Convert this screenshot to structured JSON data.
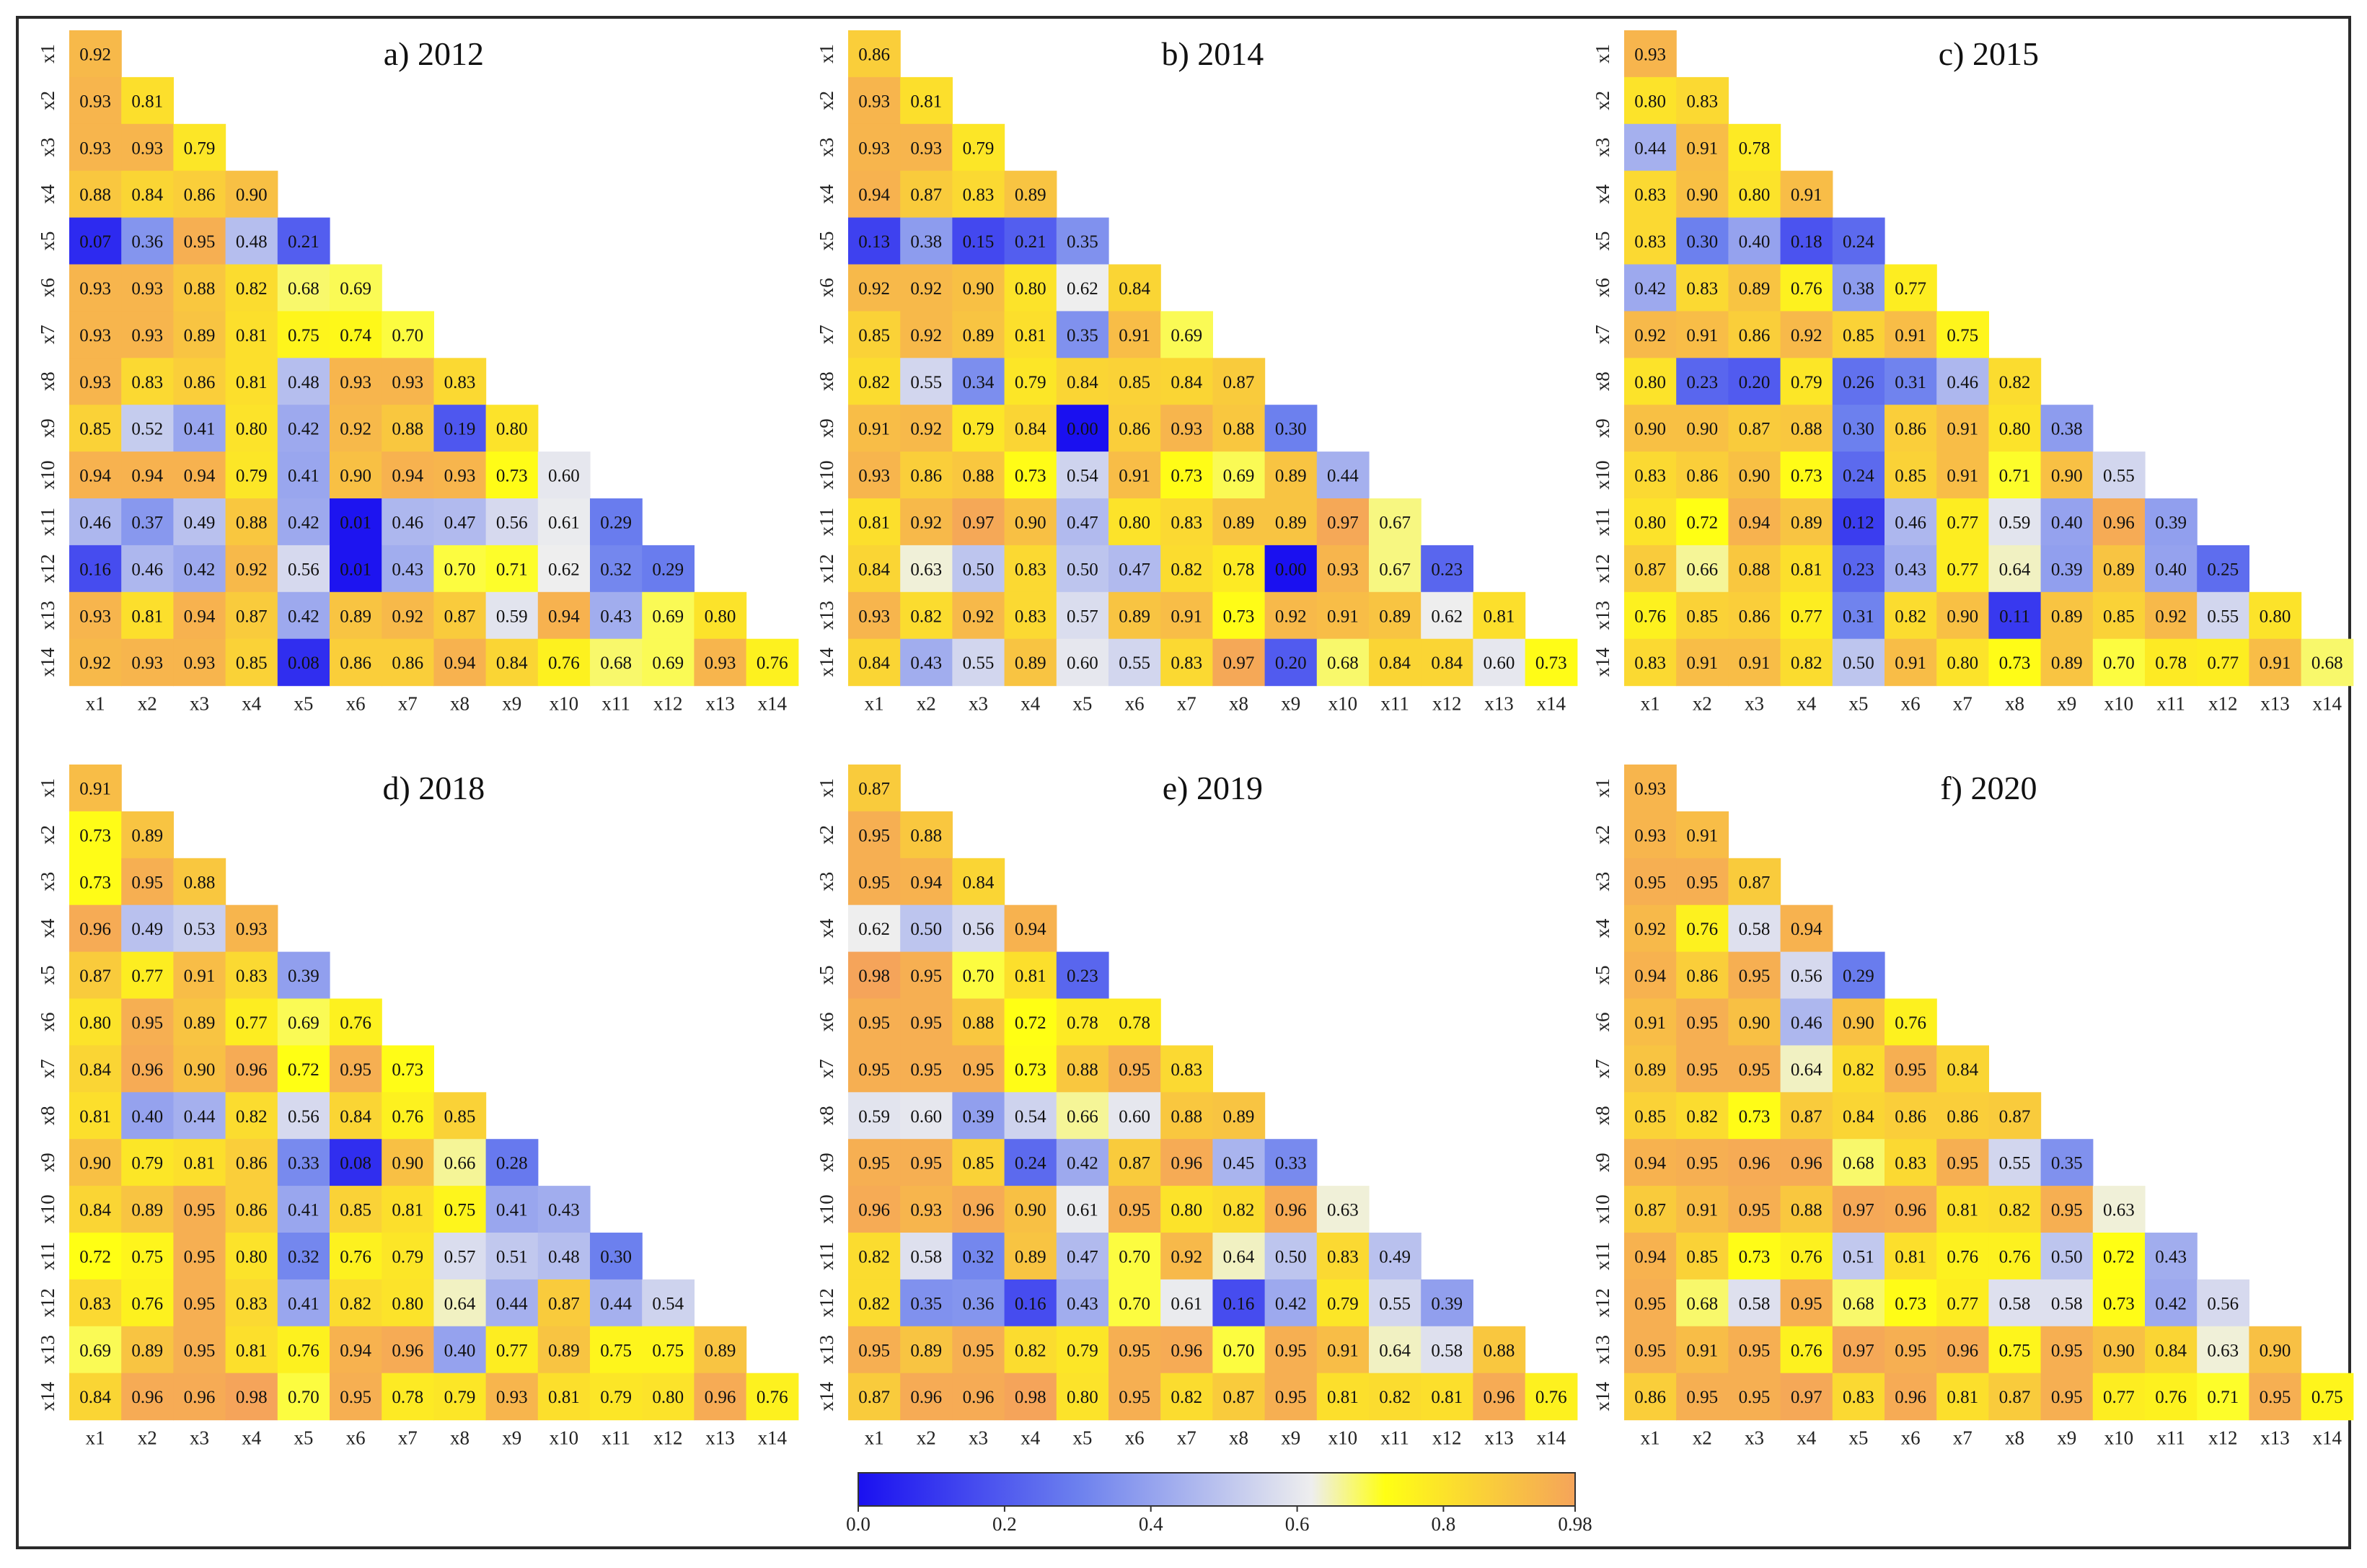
{
  "chart_data": [
    {
      "type": "heatmap",
      "title": "a) 2012",
      "labels": [
        "x1",
        "x2",
        "x3",
        "x4",
        "x5",
        "x6",
        "x7",
        "x8",
        "x9",
        "x10",
        "x11",
        "x12",
        "x13",
        "x14"
      ],
      "matrix": [
        [
          0.92
        ],
        [
          0.93,
          0.81
        ],
        [
          0.93,
          0.93,
          0.79
        ],
        [
          0.88,
          0.84,
          0.86,
          0.9
        ],
        [
          0.07,
          0.36,
          0.95,
          0.48,
          0.21
        ],
        [
          0.93,
          0.93,
          0.88,
          0.82,
          0.68,
          0.69
        ],
        [
          0.93,
          0.93,
          0.89,
          0.81,
          0.75,
          0.74,
          0.7
        ],
        [
          0.93,
          0.83,
          0.86,
          0.81,
          0.48,
          0.93,
          0.93,
          0.83
        ],
        [
          0.85,
          0.52,
          0.41,
          0.8,
          0.42,
          0.92,
          0.88,
          0.19,
          0.8
        ],
        [
          0.94,
          0.94,
          0.94,
          0.79,
          0.41,
          0.9,
          0.94,
          0.93,
          0.73,
          0.6
        ],
        [
          0.46,
          0.37,
          0.49,
          0.88,
          0.42,
          0.01,
          0.46,
          0.47,
          0.56,
          0.61,
          0.29
        ],
        [
          0.16,
          0.46,
          0.42,
          0.92,
          0.56,
          0.01,
          0.43,
          0.7,
          0.71,
          0.62,
          0.32,
          0.29
        ],
        [
          0.93,
          0.81,
          0.94,
          0.87,
          0.42,
          0.89,
          0.92,
          0.87,
          0.59,
          0.94,
          0.43,
          0.69,
          0.8
        ],
        [
          0.92,
          0.93,
          0.93,
          0.85,
          0.08,
          0.86,
          0.86,
          0.94,
          0.84,
          0.76,
          0.68,
          0.69,
          0.93,
          0.76
        ]
      ]
    },
    {
      "type": "heatmap",
      "title": "b) 2014",
      "labels": [
        "x1",
        "x2",
        "x3",
        "x4",
        "x5",
        "x6",
        "x7",
        "x8",
        "x9",
        "x10",
        "x11",
        "x12",
        "x13",
        "x14"
      ],
      "matrix": [
        [
          0.86
        ],
        [
          0.93,
          0.81
        ],
        [
          0.93,
          0.93,
          0.79
        ],
        [
          0.94,
          0.87,
          0.83,
          0.89
        ],
        [
          0.13,
          0.38,
          0.15,
          0.21,
          0.35
        ],
        [
          0.92,
          0.92,
          0.9,
          0.8,
          0.62,
          0.84
        ],
        [
          0.85,
          0.92,
          0.89,
          0.81,
          0.35,
          0.91,
          0.69
        ],
        [
          0.82,
          0.55,
          0.34,
          0.79,
          0.84,
          0.85,
          0.84,
          0.87
        ],
        [
          0.91,
          0.92,
          0.79,
          0.84,
          0.0,
          0.86,
          0.93,
          0.88,
          0.3
        ],
        [
          0.93,
          0.86,
          0.88,
          0.73,
          0.54,
          0.91,
          0.73,
          0.69,
          0.89,
          0.44
        ],
        [
          0.81,
          0.92,
          0.97,
          0.9,
          0.47,
          0.8,
          0.83,
          0.89,
          0.89,
          0.97,
          0.67
        ],
        [
          0.84,
          0.63,
          0.5,
          0.83,
          0.5,
          0.47,
          0.82,
          0.78,
          0.0,
          0.93,
          0.67,
          0.23
        ],
        [
          0.93,
          0.82,
          0.92,
          0.83,
          0.57,
          0.89,
          0.91,
          0.73,
          0.92,
          0.91,
          0.89,
          0.62,
          0.81
        ],
        [
          0.84,
          0.43,
          0.55,
          0.89,
          0.6,
          0.55,
          0.83,
          0.97,
          0.2,
          0.68,
          0.84,
          0.84,
          0.6,
          0.73
        ]
      ]
    },
    {
      "type": "heatmap",
      "title": "c) 2015",
      "labels": [
        "x1",
        "x2",
        "x3",
        "x4",
        "x5",
        "x6",
        "x7",
        "x8",
        "x9",
        "x10",
        "x11",
        "x12",
        "x13",
        "x14"
      ],
      "matrix": [
        [
          0.93
        ],
        [
          0.8,
          0.83
        ],
        [
          0.44,
          0.91,
          0.78
        ],
        [
          0.83,
          0.9,
          0.8,
          0.91
        ],
        [
          0.83,
          0.3,
          0.4,
          0.18,
          0.24
        ],
        [
          0.42,
          0.83,
          0.89,
          0.76,
          0.38,
          0.77
        ],
        [
          0.92,
          0.91,
          0.86,
          0.92,
          0.85,
          0.91,
          0.75
        ],
        [
          0.8,
          0.23,
          0.2,
          0.79,
          0.26,
          0.31,
          0.46,
          0.82
        ],
        [
          0.9,
          0.9,
          0.87,
          0.88,
          0.3,
          0.86,
          0.91,
          0.8,
          0.38
        ],
        [
          0.83,
          0.86,
          0.9,
          0.73,
          0.24,
          0.85,
          0.91,
          0.71,
          0.9,
          0.55
        ],
        [
          0.8,
          0.72,
          0.94,
          0.89,
          0.12,
          0.46,
          0.77,
          0.59,
          0.4,
          0.96,
          0.39
        ],
        [
          0.87,
          0.66,
          0.88,
          0.81,
          0.23,
          0.43,
          0.77,
          0.64,
          0.39,
          0.89,
          0.4,
          0.25
        ],
        [
          0.76,
          0.85,
          0.86,
          0.77,
          0.31,
          0.82,
          0.9,
          0.11,
          0.89,
          0.85,
          0.92,
          0.55,
          0.8
        ],
        [
          0.83,
          0.91,
          0.91,
          0.82,
          0.5,
          0.91,
          0.8,
          0.73,
          0.89,
          0.7,
          0.78,
          0.77,
          0.91,
          0.68
        ]
      ]
    },
    {
      "type": "heatmap",
      "title": "d) 2018",
      "labels": [
        "x1",
        "x2",
        "x3",
        "x4",
        "x5",
        "x6",
        "x7",
        "x8",
        "x9",
        "x10",
        "x11",
        "x12",
        "x13",
        "x14"
      ],
      "matrix": [
        [
          0.91
        ],
        [
          0.73,
          0.89
        ],
        [
          0.73,
          0.95,
          0.88
        ],
        [
          0.96,
          0.49,
          0.53,
          0.93
        ],
        [
          0.87,
          0.77,
          0.91,
          0.83,
          0.39
        ],
        [
          0.8,
          0.95,
          0.89,
          0.77,
          0.69,
          0.76
        ],
        [
          0.84,
          0.96,
          0.9,
          0.96,
          0.72,
          0.95,
          0.73
        ],
        [
          0.81,
          0.4,
          0.44,
          0.82,
          0.56,
          0.84,
          0.76,
          0.85
        ],
        [
          0.9,
          0.79,
          0.81,
          0.86,
          0.33,
          0.08,
          0.9,
          0.66,
          0.28
        ],
        [
          0.84,
          0.89,
          0.95,
          0.86,
          0.41,
          0.85,
          0.81,
          0.75,
          0.41,
          0.43
        ],
        [
          0.72,
          0.75,
          0.95,
          0.8,
          0.32,
          0.76,
          0.79,
          0.57,
          0.51,
          0.48,
          0.3
        ],
        [
          0.83,
          0.76,
          0.95,
          0.83,
          0.41,
          0.82,
          0.8,
          0.64,
          0.44,
          0.87,
          0.44,
          0.54
        ],
        [
          0.69,
          0.89,
          0.95,
          0.81,
          0.76,
          0.94,
          0.96,
          0.4,
          0.77,
          0.89,
          0.75,
          0.75,
          0.89
        ],
        [
          0.84,
          0.96,
          0.96,
          0.98,
          0.7,
          0.95,
          0.78,
          0.79,
          0.93,
          0.81,
          0.79,
          0.8,
          0.96,
          0.76
        ]
      ]
    },
    {
      "type": "heatmap",
      "title": "e) 2019",
      "labels": [
        "x1",
        "x2",
        "x3",
        "x4",
        "x5",
        "x6",
        "x7",
        "x8",
        "x9",
        "x10",
        "x11",
        "x12",
        "x13",
        "x14"
      ],
      "matrix": [
        [
          0.87
        ],
        [
          0.95,
          0.88
        ],
        [
          0.95,
          0.94,
          0.84
        ],
        [
          0.62,
          0.5,
          0.56,
          0.94
        ],
        [
          0.98,
          0.95,
          0.7,
          0.81,
          0.23
        ],
        [
          0.95,
          0.95,
          0.88,
          0.72,
          0.78,
          0.78
        ],
        [
          0.95,
          0.95,
          0.95,
          0.73,
          0.88,
          0.95,
          0.83
        ],
        [
          0.59,
          0.6,
          0.39,
          0.54,
          0.66,
          0.6,
          0.88,
          0.89
        ],
        [
          0.95,
          0.95,
          0.85,
          0.24,
          0.42,
          0.87,
          0.96,
          0.45,
          0.33
        ],
        [
          0.96,
          0.93,
          0.96,
          0.9,
          0.61,
          0.95,
          0.8,
          0.82,
          0.96,
          0.63
        ],
        [
          0.82,
          0.58,
          0.32,
          0.89,
          0.47,
          0.7,
          0.92,
          0.64,
          0.5,
          0.83,
          0.49
        ],
        [
          0.82,
          0.35,
          0.36,
          0.16,
          0.43,
          0.7,
          0.61,
          0.16,
          0.42,
          0.79,
          0.55,
          0.39
        ],
        [
          0.95,
          0.89,
          0.95,
          0.82,
          0.79,
          0.95,
          0.96,
          0.7,
          0.95,
          0.91,
          0.64,
          0.58,
          0.88
        ],
        [
          0.87,
          0.96,
          0.96,
          0.98,
          0.8,
          0.95,
          0.82,
          0.87,
          0.95,
          0.81,
          0.82,
          0.81,
          0.96,
          0.76
        ]
      ]
    },
    {
      "type": "heatmap",
      "title": "f) 2020",
      "labels": [
        "x1",
        "x2",
        "x3",
        "x4",
        "x5",
        "x6",
        "x7",
        "x8",
        "x9",
        "x10",
        "x11",
        "x12",
        "x13",
        "x14"
      ],
      "matrix": [
        [
          0.93
        ],
        [
          0.93,
          0.91
        ],
        [
          0.95,
          0.95,
          0.87
        ],
        [
          0.92,
          0.76,
          0.58,
          0.94
        ],
        [
          0.94,
          0.86,
          0.95,
          0.56,
          0.29
        ],
        [
          0.91,
          0.95,
          0.9,
          0.46,
          0.9,
          0.76
        ],
        [
          0.89,
          0.95,
          0.95,
          0.64,
          0.82,
          0.95,
          0.84
        ],
        [
          0.85,
          0.82,
          0.73,
          0.87,
          0.84,
          0.86,
          0.86,
          0.87
        ],
        [
          0.94,
          0.95,
          0.96,
          0.96,
          0.68,
          0.83,
          0.95,
          0.55,
          0.35
        ],
        [
          0.87,
          0.91,
          0.95,
          0.88,
          0.97,
          0.96,
          0.81,
          0.82,
          0.95,
          0.63
        ],
        [
          0.94,
          0.85,
          0.73,
          0.76,
          0.51,
          0.81,
          0.76,
          0.76,
          0.5,
          0.72,
          0.43
        ],
        [
          0.95,
          0.68,
          0.58,
          0.95,
          0.68,
          0.73,
          0.77,
          0.58,
          0.58,
          0.73,
          0.42,
          0.56
        ],
        [
          0.95,
          0.91,
          0.95,
          0.76,
          0.97,
          0.95,
          0.96,
          0.75,
          0.95,
          0.9,
          0.84,
          0.63,
          0.9
        ],
        [
          0.86,
          0.95,
          0.95,
          0.97,
          0.83,
          0.96,
          0.81,
          0.87,
          0.95,
          0.77,
          0.76,
          0.71,
          0.95,
          0.75
        ]
      ]
    }
  ],
  "colorbar": {
    "ticks": [
      "0.0",
      "0.2",
      "0.4",
      "0.6",
      "0.8",
      "0.98"
    ],
    "tick_values": [
      0.0,
      0.2,
      0.4,
      0.6,
      0.8,
      0.98
    ],
    "range": [
      0.0,
      0.98
    ],
    "stops": [
      {
        "value": 0.0,
        "color": "#1a10f0"
      },
      {
        "value": 0.3,
        "color": "#6c80ee"
      },
      {
        "value": 0.62,
        "color": "#eeeeee"
      },
      {
        "value": 0.72,
        "color": "#ffff14"
      },
      {
        "value": 0.98,
        "color": "#f5a45a"
      }
    ]
  }
}
